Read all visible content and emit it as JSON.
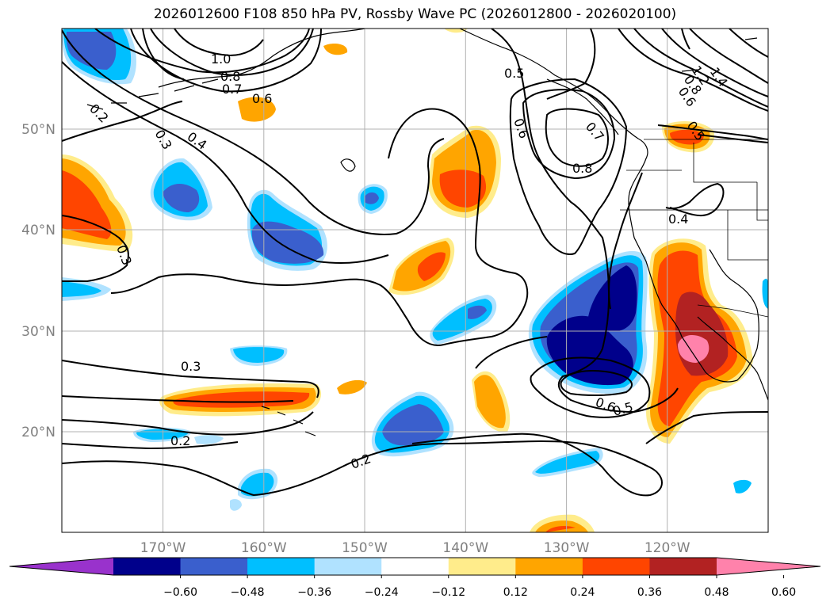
{
  "title": "2026012600 F108 850 hPa PV, Rossby Wave PC (2026012800 - 2026020100)",
  "axes": {
    "lon_labels": [
      "170°W",
      "160°W",
      "150°W",
      "140°W",
      "130°W",
      "120°W"
    ],
    "lat_labels": [
      "50°N",
      "40°N",
      "30°N",
      "20°N"
    ]
  },
  "colorbar": {
    "ticks": [
      "−0.60",
      "−0.48",
      "−0.36",
      "−0.24",
      "−0.12",
      "0.12",
      "0.24",
      "0.36",
      "0.48",
      "0.60"
    ],
    "colors": [
      "#9932cc",
      "#00008b",
      "#3a5fcd",
      "#00bfff",
      "#b0e2ff",
      "#ffffff",
      "#ffec8b",
      "#ffa500",
      "#ff4500",
      "#b22222",
      "#ff82ab"
    ]
  },
  "contour_labels": [
    {
      "text": "1.0"
    },
    {
      "text": "0.8"
    },
    {
      "text": "0.7"
    },
    {
      "text": "0.6"
    },
    {
      "text": "0.4"
    },
    {
      "text": "0.3"
    },
    {
      "text": "0.2"
    },
    {
      "text": "0.3"
    },
    {
      "text": "0.3"
    },
    {
      "text": "0.2"
    },
    {
      "text": "0.2"
    },
    {
      "text": "0.5"
    },
    {
      "text": "0.6"
    },
    {
      "text": "0.7"
    },
    {
      "text": "0.8"
    },
    {
      "text": "0.4"
    },
    {
      "text": "0.6"
    },
    {
      "text": "0.5"
    },
    {
      "text": "1.4"
    },
    {
      "text": "1.2"
    },
    {
      "text": "0.8"
    },
    {
      "text": "0.6"
    },
    {
      "text": "0.5"
    }
  ]
}
